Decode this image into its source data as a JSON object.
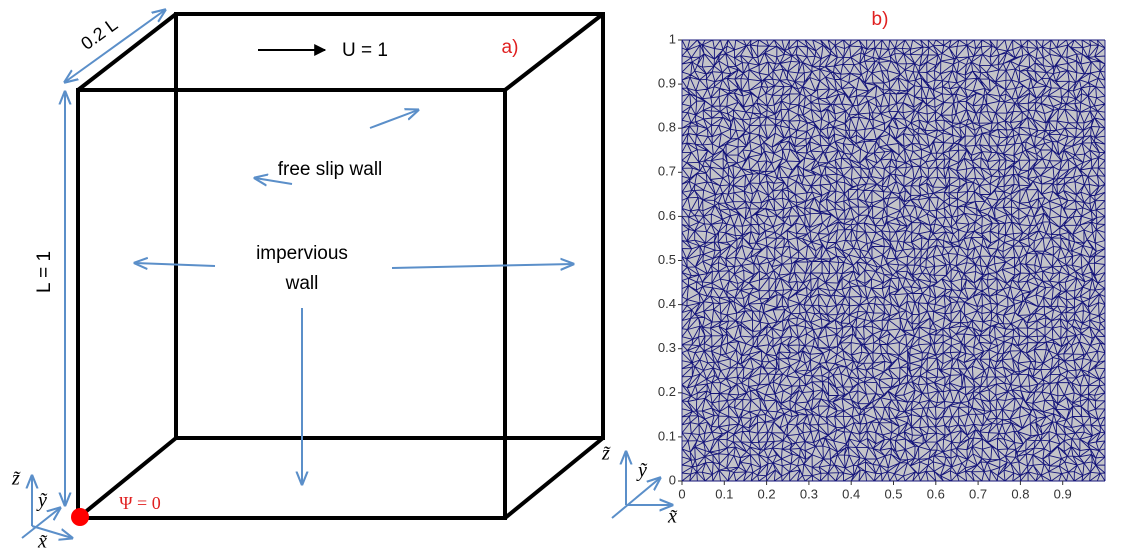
{
  "panel_a": {
    "tag": "a)",
    "depth_label": "0.2 L",
    "velocity_label": "U = 1",
    "free_slip_label": "free slip wall",
    "impervious_label": [
      "impervious",
      "wall"
    ],
    "height_label": "L = 1",
    "psi_label": "Ψ = 0",
    "axes": {
      "z": "z̃",
      "y": "ỹ",
      "x": "x̃"
    }
  },
  "panel_b": {
    "tag": "b)",
    "xticks": [
      0,
      0.1,
      0.2,
      0.3,
      0.4,
      0.5,
      0.6,
      0.7,
      0.8,
      0.9
    ],
    "yticks": [
      0,
      0.1,
      0.2,
      0.3,
      0.4,
      0.5,
      0.6,
      0.7,
      0.8,
      0.9,
      1
    ],
    "axes": {
      "z": "z̃",
      "y": "ỹ",
      "x": "x̃"
    }
  }
}
